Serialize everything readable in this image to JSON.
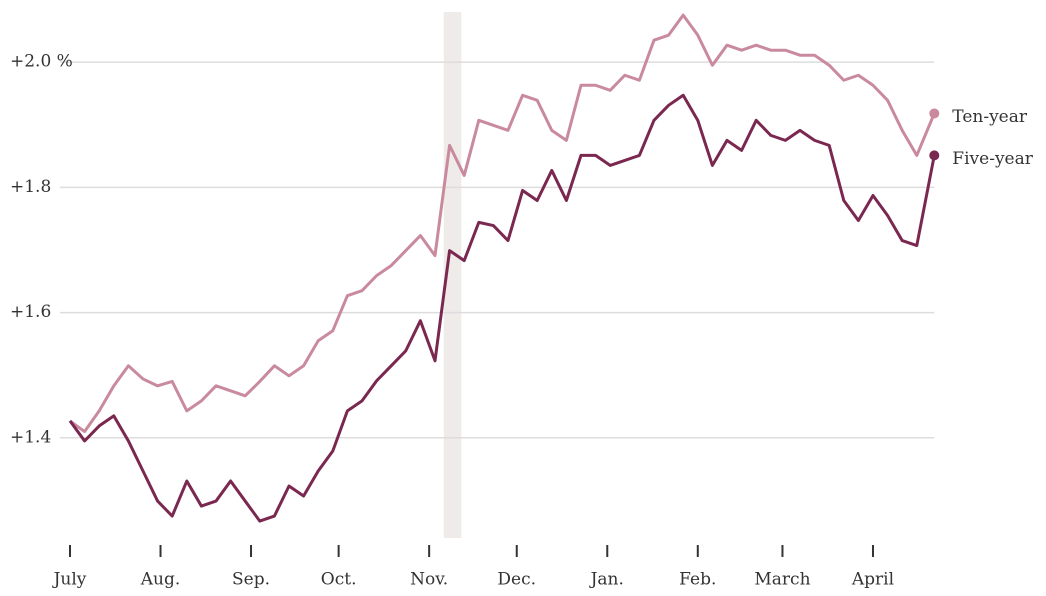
{
  "chart_data": {
    "type": "line",
    "x": [
      0,
      5,
      10,
      15,
      20,
      25,
      30,
      35,
      40,
      45,
      50,
      55,
      60,
      65,
      70,
      75,
      80,
      85,
      90,
      95,
      100,
      105,
      110,
      115,
      120,
      125,
      130,
      135,
      140,
      145,
      150,
      155,
      160,
      165,
      170,
      175,
      180,
      185,
      190,
      195,
      200,
      205,
      210,
      215,
      220,
      225,
      230,
      235,
      240,
      245,
      250,
      255,
      260,
      265,
      270,
      275,
      280,
      285,
      290,
      296
    ],
    "series": [
      {
        "name": "Ten-year",
        "color": "#c98a9e",
        "values": [
          1.427,
          1.41,
          1.443,
          1.483,
          1.515,
          1.494,
          1.483,
          1.49,
          1.443,
          1.459,
          1.483,
          1.475,
          1.467,
          1.49,
          1.515,
          1.499,
          1.515,
          1.555,
          1.571,
          1.627,
          1.635,
          1.659,
          1.675,
          1.699,
          1.723,
          1.691,
          1.867,
          1.819,
          1.907,
          1.899,
          1.891,
          1.947,
          1.939,
          1.891,
          1.875,
          1.963,
          1.963,
          1.955,
          1.979,
          1.971,
          2.035,
          2.043,
          2.075,
          2.043,
          1.995,
          2.027,
          2.019,
          2.027,
          2.019,
          2.019,
          2.011,
          2.011,
          1.995,
          1.971,
          1.979,
          1.963,
          1.939,
          1.891,
          1.851,
          1.918
        ]
      },
      {
        "name": "Five-year",
        "color": "#7b2850",
        "values": [
          1.427,
          1.395,
          1.419,
          1.435,
          1.395,
          1.347,
          1.299,
          1.275,
          1.331,
          1.291,
          1.299,
          1.331,
          1.299,
          1.267,
          1.275,
          1.323,
          1.307,
          1.347,
          1.379,
          1.443,
          1.459,
          1.491,
          1.515,
          1.539,
          1.587,
          1.523,
          1.699,
          1.683,
          1.744,
          1.739,
          1.715,
          1.795,
          1.779,
          1.827,
          1.779,
          1.851,
          1.851,
          1.835,
          1.843,
          1.851,
          1.907,
          1.931,
          1.947,
          1.907,
          1.835,
          1.875,
          1.859,
          1.907,
          1.883,
          1.875,
          1.891,
          1.875,
          1.867,
          1.779,
          1.747,
          1.787,
          1.755,
          1.715,
          1.707,
          1.851
        ]
      }
    ],
    "xlim": [
      0,
      296
    ],
    "xticks": [
      {
        "value": 0,
        "label": "July"
      },
      {
        "value": 31,
        "label": "Aug."
      },
      {
        "value": 62,
        "label": "Sep."
      },
      {
        "value": 92,
        "label": "Oct."
      },
      {
        "value": 123,
        "label": "Nov."
      },
      {
        "value": 153,
        "label": "Dec."
      },
      {
        "value": 184,
        "label": "Jan."
      },
      {
        "value": 215,
        "label": "Feb."
      },
      {
        "value": 244,
        "label": "March"
      },
      {
        "value": 275,
        "label": "April"
      }
    ],
    "ylim": [
      1.24,
      2.08
    ],
    "yticks": [
      {
        "value": 2.0,
        "label": "+2.0 %"
      },
      {
        "value": 1.8,
        "label": "+1.8"
      },
      {
        "value": 1.6,
        "label": "+1.6"
      },
      {
        "value": 1.4,
        "label": "+1.4"
      }
    ],
    "highlight_range": [
      128,
      134
    ],
    "grid": true
  }
}
